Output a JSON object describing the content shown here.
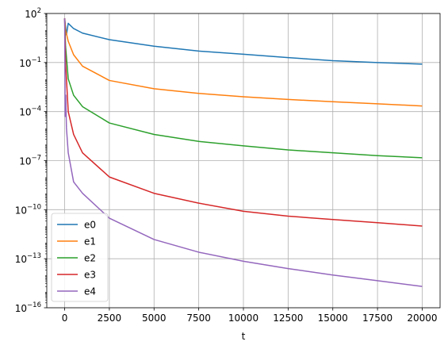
{
  "chart_data": {
    "type": "line",
    "title": "",
    "xlabel": "t",
    "ylabel": "",
    "yscale": "log",
    "xlim": [
      -1000,
      21000
    ],
    "ylim": [
      1e-16,
      100
    ],
    "grid": true,
    "legend_position": "lower-left",
    "x_ticks": [
      0,
      2500,
      5000,
      7500,
      10000,
      12500,
      15000,
      17500,
      20000
    ],
    "x_tick_labels": [
      "0",
      "2500",
      "5000",
      "7500",
      "10000",
      "12500",
      "15000",
      "17500",
      "20000"
    ],
    "y_ticks": [
      1e-16,
      1e-13,
      1e-10,
      1e-07,
      0.0001,
      0.1,
      100
    ],
    "y_tick_labels": [
      {
        "base": "10",
        "exp": "−16"
      },
      {
        "base": "10",
        "exp": "−13"
      },
      {
        "base": "10",
        "exp": "−10"
      },
      {
        "base": "10",
        "exp": "−7"
      },
      {
        "base": "10",
        "exp": "−4"
      },
      {
        "base": "10",
        "exp": "−1"
      },
      {
        "base": "10",
        "exp": "2"
      }
    ],
    "series": [
      {
        "name": "e0",
        "color": "#1f77b4",
        "x": [
          0,
          100,
          200,
          500,
          1000,
          2500,
          5000,
          7500,
          10000,
          12500,
          15000,
          17500,
          20000
        ],
        "y": [
          50,
          5,
          25,
          12,
          6.3,
          2.5,
          1.0,
          0.5,
          0.32,
          0.2,
          0.13,
          0.1,
          0.08
        ]
      },
      {
        "name": "e1",
        "color": "#ff7f0e",
        "x": [
          0,
          50,
          200,
          500,
          1000,
          2500,
          5000,
          7500,
          10000,
          12500,
          15000,
          17500,
          20000
        ],
        "y": [
          50,
          10,
          2.0,
          0.3,
          0.06,
          0.008,
          0.0025,
          0.0013,
          0.0008,
          0.00055,
          0.0004,
          0.0003,
          0.00022
        ]
      },
      {
        "name": "e2",
        "color": "#2ca02c",
        "x": [
          0,
          50,
          200,
          500,
          1000,
          2500,
          5000,
          7500,
          10000,
          12500,
          15000,
          17500,
          20000
        ],
        "y": [
          50,
          1.0,
          0.01,
          0.001,
          0.0002,
          2e-05,
          4e-06,
          1.5e-06,
          8e-07,
          4.5e-07,
          3e-07,
          2e-07,
          1.5e-07
        ]
      },
      {
        "name": "e3",
        "color": "#d62728",
        "x": [
          0,
          50,
          200,
          500,
          1000,
          2500,
          5000,
          7500,
          10000,
          12500,
          15000,
          17500,
          20000
        ],
        "y": [
          50,
          0.1,
          0.0001,
          4e-06,
          3e-07,
          1e-08,
          1e-09,
          2.5e-10,
          8e-11,
          4e-11,
          2.5e-11,
          1.6e-11,
          1e-11
        ]
      },
      {
        "name": "e4",
        "color": "#9467bd",
        "x": [
          0,
          30,
          60,
          100,
          200,
          500,
          1000,
          2500,
          5000,
          7500,
          10000,
          12500,
          15000,
          17500,
          20000
        ],
        "y": [
          50,
          5e-05,
          0.001,
          1e-05,
          3e-07,
          5e-09,
          1e-09,
          3e-11,
          1.5e-12,
          2.5e-13,
          7e-14,
          2.5e-14,
          1e-14,
          4.5e-15,
          2e-15
        ]
      }
    ]
  }
}
